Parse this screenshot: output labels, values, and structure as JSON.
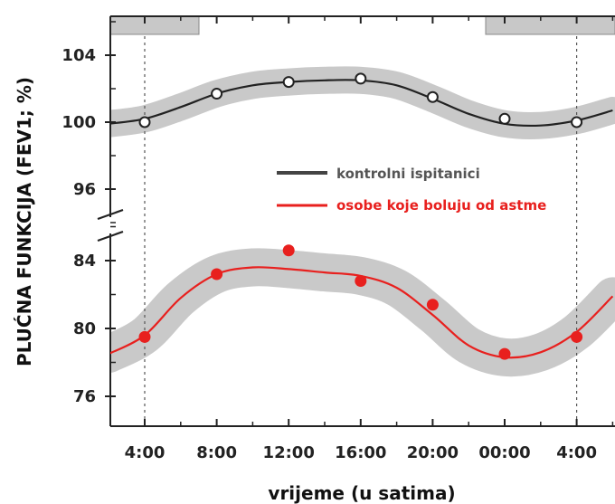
{
  "chart_data": {
    "type": "line",
    "xlabel": "vrijeme (u satima)",
    "ylabel": "PLUĆNA FUNKCIJA (FEV1; %)",
    "x_tick_labels": [
      "4:00",
      "8:00",
      "12:00",
      "16:00",
      "20:00",
      "00:00",
      "4:00"
    ],
    "y_ticks_upper": [
      96,
      100,
      104
    ],
    "y_ticks_lower": [
      76,
      80,
      84
    ],
    "ylim_upper": [
      95,
      108
    ],
    "ylim_lower": [
      74,
      88
    ],
    "axis_break": true,
    "grid": false,
    "legend_position": "center-right",
    "dark_period_bars": [
      [
        "1:30",
        "7:00"
      ],
      [
        "23:00",
        "6:30"
      ]
    ],
    "series": [
      {
        "name": "kontrolni ispitanici",
        "color": "#222222",
        "hours": [
          4,
          8,
          12,
          16,
          20,
          24,
          28
        ],
        "points": [
          100.0,
          101.7,
          102.4,
          102.6,
          101.5,
          100.2,
          100.0
        ],
        "curve_hours": [
          2,
          4,
          6,
          8,
          10,
          12,
          14,
          16,
          18,
          20,
          22,
          24,
          26,
          28,
          30
        ],
        "curve": [
          99.9,
          100.2,
          100.9,
          101.7,
          102.2,
          102.4,
          102.5,
          102.5,
          102.2,
          101.4,
          100.5,
          99.9,
          99.8,
          100.1,
          100.7
        ]
      },
      {
        "name": "osobe koje boluju od astme",
        "color": "#e8201e",
        "hours": [
          4,
          8,
          12,
          16,
          20,
          24,
          28
        ],
        "points": [
          79.5,
          83.2,
          84.6,
          82.8,
          81.4,
          78.5,
          79.5
        ],
        "curve_hours": [
          2,
          4,
          6,
          8,
          10,
          12,
          14,
          16,
          18,
          20,
          22,
          24,
          26,
          28,
          30
        ],
        "curve": [
          78.5,
          79.6,
          81.8,
          83.2,
          83.6,
          83.5,
          83.3,
          83.1,
          82.4,
          80.8,
          79.0,
          78.3,
          78.6,
          79.8,
          81.9
        ]
      }
    ]
  },
  "colors": {
    "band": "#c9c9c9",
    "control": "#222222",
    "asthma": "#e8201e",
    "bar_fill": "#c8c8c8",
    "axis": "#222222"
  }
}
